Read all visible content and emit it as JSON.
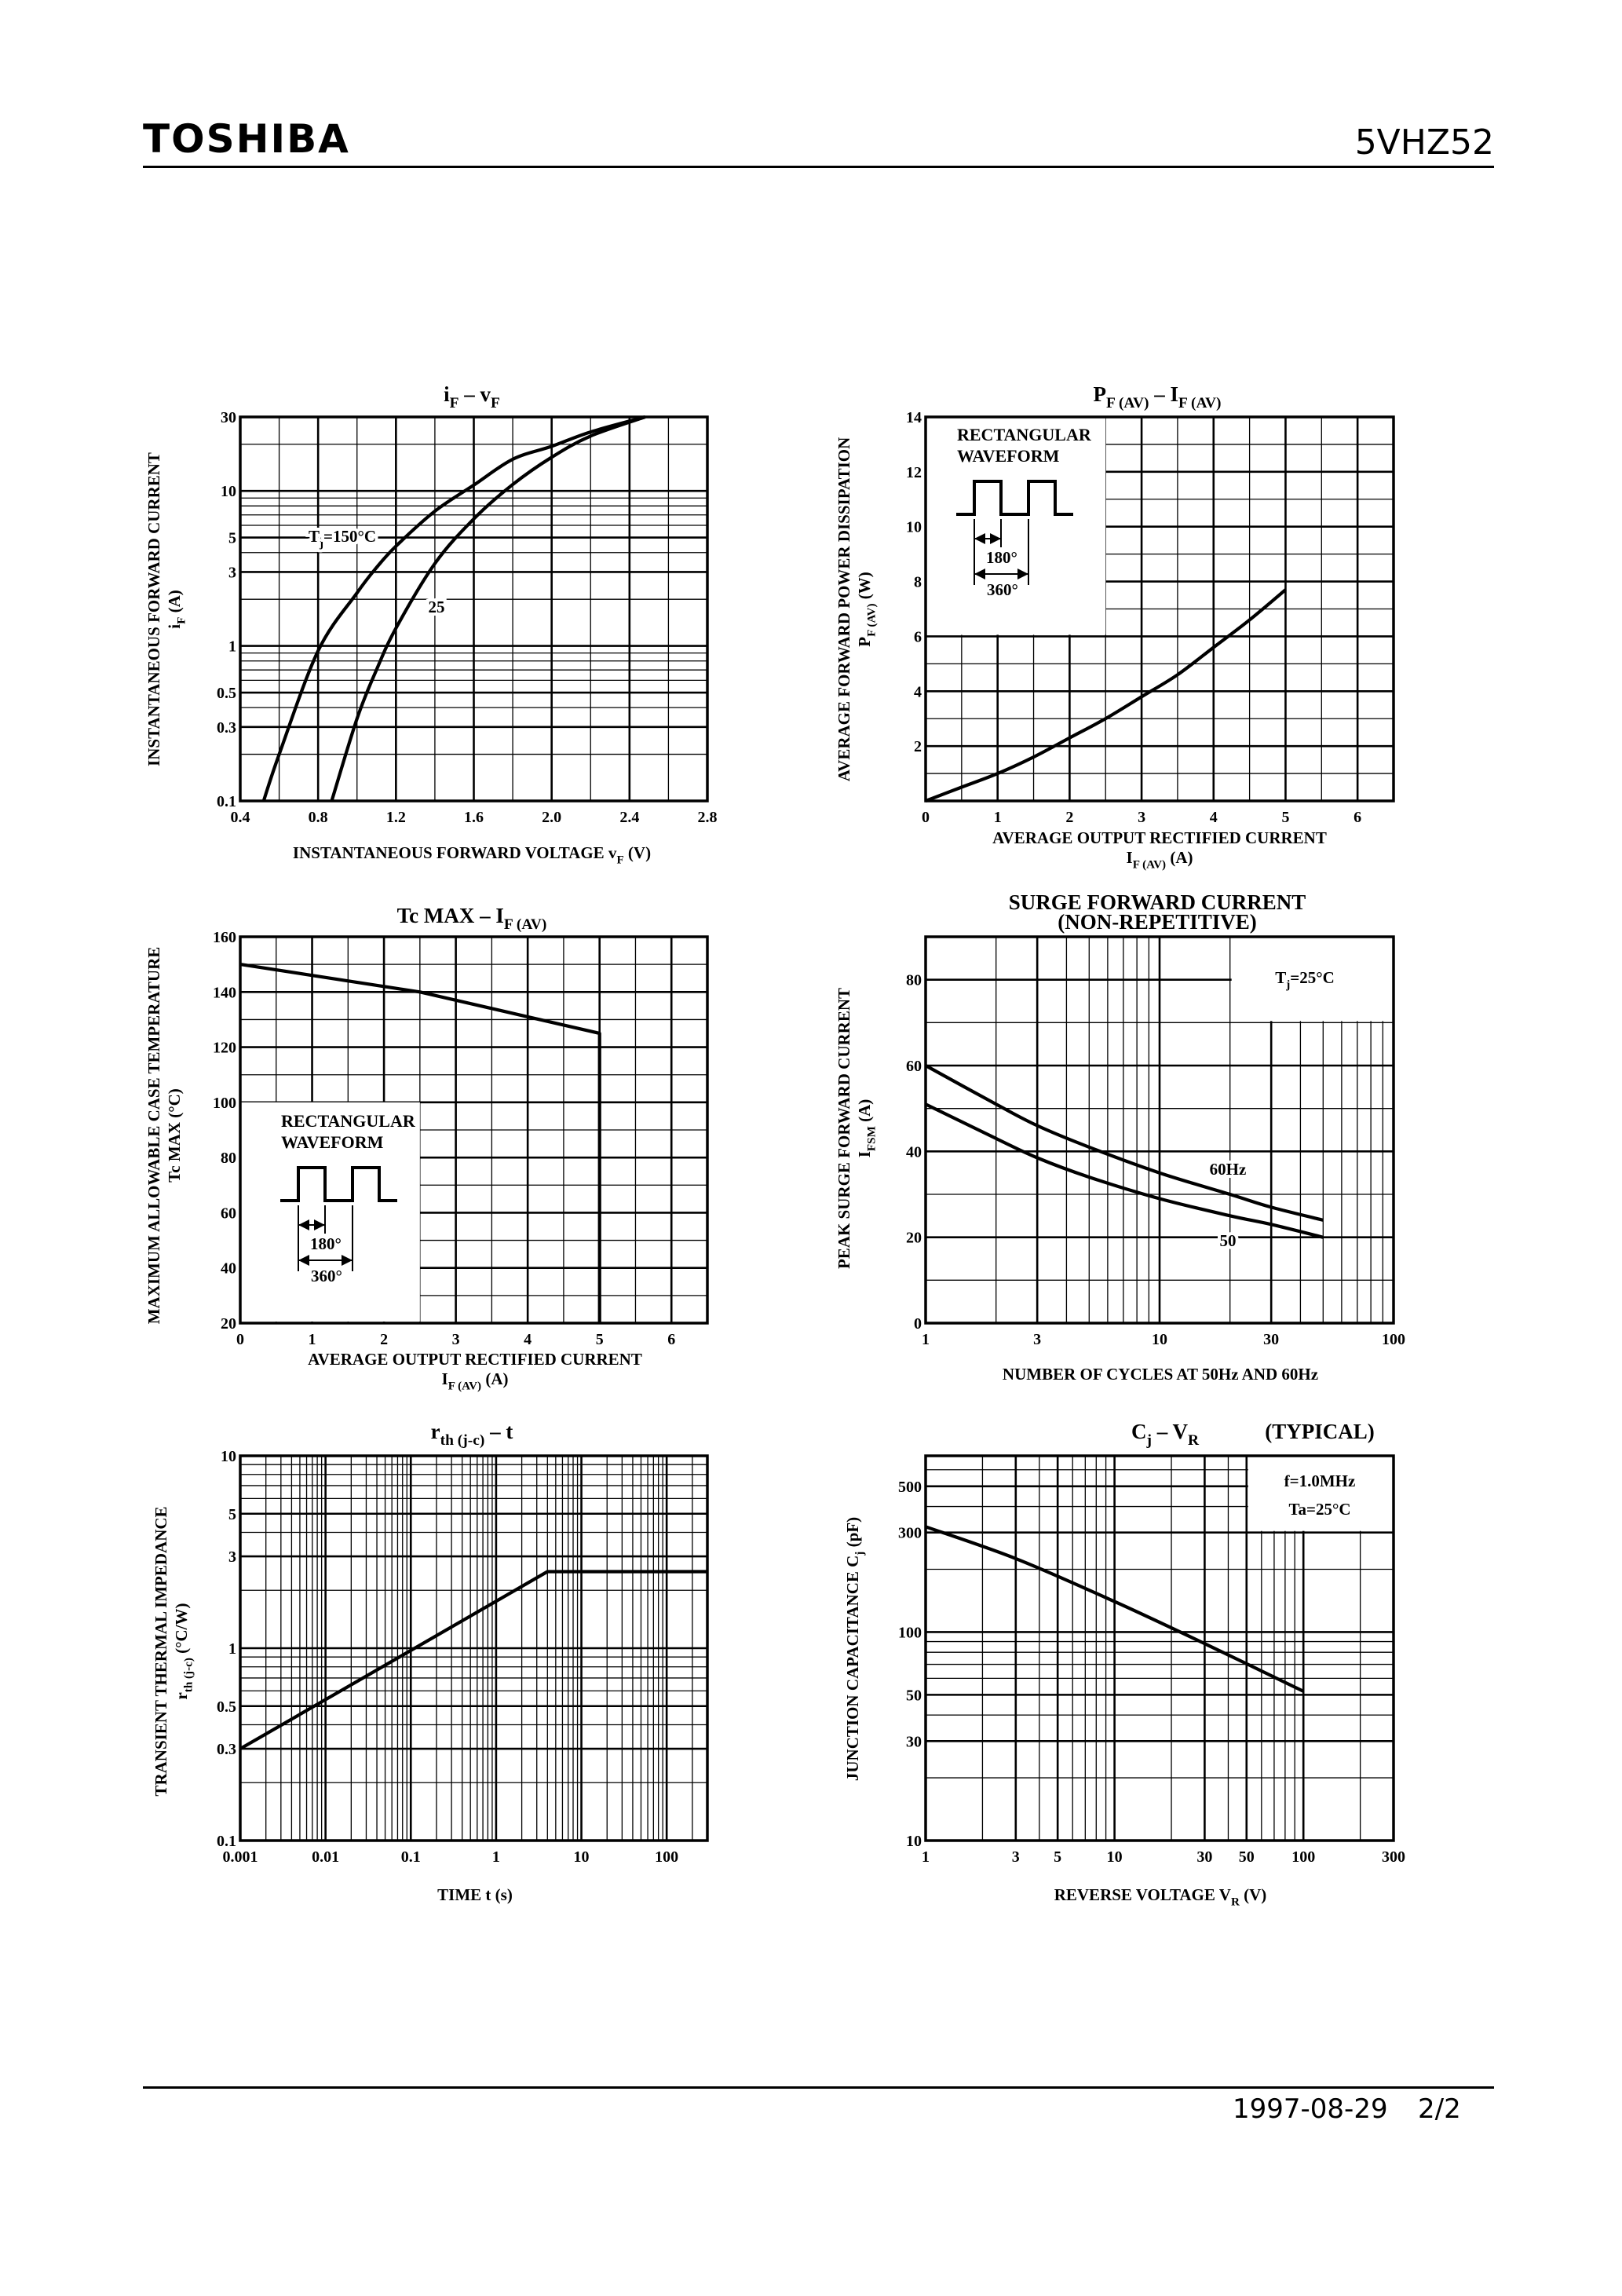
{
  "header": {
    "brand": "TOSHIBA",
    "part_number": "5VHZ52"
  },
  "footer": {
    "date": "1997-08-29",
    "page": "2/2"
  },
  "chart_data": [
    {
      "type": "line",
      "title": [
        [
          [
            "i",
            "F"
          ],
          [
            "  –  v",
            "F"
          ]
        ]
      ],
      "xlabel": [
        [
          [
            "INSTANTANEOUS FORWARD VOLTAGE   v",
            "F"
          ],
          [
            "    (V)",
            ""
          ]
        ]
      ],
      "ylabel": [
        "INSTANTANEOUS FORWARD CURRENT",
        [
          [
            "i",
            "F"
          ],
          [
            "   (A)",
            ""
          ]
        ]
      ],
      "xscale": "linear",
      "yscale": "log",
      "xlim": [
        0.4,
        2.8
      ],
      "ylim": [
        0.1,
        30
      ],
      "xticks": [
        "0.4",
        "0.8",
        "1.2",
        "1.6",
        "2.0",
        "2.4",
        "2.8"
      ],
      "yticks": [
        "0.1",
        "0.3",
        "0.5",
        "1",
        "3",
        "5",
        "10",
        "30"
      ],
      "grid": true,
      "series": [
        {
          "name": [
            [
              [
                "T",
                "j"
              ],
              [
                "=150°C",
                ""
              ]
            ]
          ],
          "x": [
            0.52,
            0.6,
            0.8,
            1.0,
            1.1,
            1.2,
            1.4,
            1.6,
            1.8,
            2.0,
            2.2,
            2.48
          ],
          "y": [
            0.1,
            0.2,
            0.93,
            2.2,
            3.2,
            4.4,
            7.4,
            10.9,
            16,
            19.4,
            24,
            30
          ]
        },
        {
          "name": "25",
          "x": [
            0.87,
            1.0,
            1.1,
            1.2,
            1.4,
            1.6,
            1.8,
            2.0,
            2.2,
            2.48
          ],
          "y": [
            0.1,
            0.34,
            0.7,
            1.3,
            3.4,
            6.6,
            11,
            16.5,
            22.6,
            30
          ]
        }
      ]
    },
    {
      "type": "line",
      "title": [
        [
          [
            "P",
            "F (AV)"
          ],
          [
            "  –  I",
            "F (AV)"
          ]
        ]
      ],
      "xlabel": [
        "AVERAGE OUTPUT RECTIFIED CURRENT",
        [
          [
            "I",
            "F (AV)"
          ],
          [
            "    (A)",
            ""
          ]
        ]
      ],
      "ylabel": [
        "AVERAGE FORWARD POWER DISSIPATION",
        [
          [
            "P",
            "F (AV)"
          ],
          [
            "    (W)",
            ""
          ]
        ]
      ],
      "xscale": "linear",
      "yscale": "linear",
      "xlim": [
        0,
        6.5
      ],
      "ylim": [
        0,
        14
      ],
      "xticks": [
        "0",
        "1",
        "2",
        "3",
        "4",
        "5",
        "6"
      ],
      "yticks": [
        "2",
        "4",
        "6",
        "8",
        "10",
        "12",
        "14"
      ],
      "grid": true,
      "inset": {
        "lines": [
          "RECTANGULAR",
          "WAVEFORM"
        ],
        "conduction_angle": "180°",
        "period": "360°"
      },
      "series": [
        {
          "x": [
            0,
            0.5,
            1,
            1.5,
            2,
            2.5,
            3,
            3.5,
            4,
            4.5,
            5
          ],
          "y": [
            0,
            0.5,
            1.0,
            1.6,
            2.3,
            3.0,
            3.8,
            4.6,
            5.6,
            6.6,
            7.7
          ]
        }
      ]
    },
    {
      "type": "line",
      "title": [
        [
          [
            "Tc MAX  –  I",
            "F (AV)"
          ]
        ]
      ],
      "xlabel": [
        "AVERAGE OUTPUT RECTIFIED CURRENT",
        [
          [
            "I",
            "F (AV)"
          ],
          [
            "    (A)",
            ""
          ]
        ]
      ],
      "ylabel": [
        "MAXIMUM ALLOWABLE CASE TEMPERATURE",
        "Tc  MAX   (°C)"
      ],
      "xscale": "linear",
      "yscale": "linear",
      "xlim": [
        0,
        6.5
      ],
      "ylim": [
        20,
        160
      ],
      "xticks": [
        "0",
        "1",
        "2",
        "3",
        "4",
        "5",
        "6"
      ],
      "yticks": [
        "20",
        "40",
        "60",
        "80",
        "100",
        "120",
        "140",
        "160"
      ],
      "grid": true,
      "inset": {
        "lines": [
          "RECTANGULAR",
          "WAVEFORM"
        ],
        "conduction_angle": "180°",
        "period": "360°"
      },
      "series": [
        {
          "x": [
            0,
            1,
            2,
            2.5,
            3,
            4,
            5,
            5
          ],
          "y": [
            150,
            146,
            142,
            140,
            137,
            131,
            125,
            20
          ]
        }
      ]
    },
    {
      "type": "line",
      "title": [
        "SURGE FORWARD CURRENT",
        "(NON-REPETITIVE)"
      ],
      "xlabel": [
        "NUMBER OF CYCLES AT 50Hz AND 60Hz"
      ],
      "ylabel": [
        "PEAK SURGE FORWARD CURRENT",
        [
          [
            "I",
            "FSM"
          ],
          [
            "    (A)",
            ""
          ]
        ]
      ],
      "xscale": "log",
      "yscale": "linear",
      "xlim": [
        1,
        100
      ],
      "ylim": [
        0,
        90
      ],
      "xticks": [
        "1",
        "3",
        "10",
        "30",
        "100"
      ],
      "yticks": [
        "0",
        "20",
        "40",
        "60",
        "80"
      ],
      "grid": true,
      "condition": [
        [
          [
            "T",
            "j"
          ],
          [
            "=25°C",
            ""
          ]
        ]
      ],
      "series": [
        {
          "name": "60Hz",
          "x": [
            1,
            2,
            3,
            5,
            10,
            20,
            30,
            50
          ],
          "y": [
            60,
            51,
            46,
            41,
            35,
            30,
            27,
            24
          ]
        },
        {
          "name": "50",
          "x": [
            1,
            2,
            3,
            5,
            10,
            20,
            30,
            50
          ],
          "y": [
            51,
            43,
            38.5,
            34,
            29,
            25,
            23,
            20
          ]
        }
      ]
    },
    {
      "type": "line",
      "title": [
        [
          [
            "r",
            "th (j-c)"
          ],
          [
            "  –  t",
            ""
          ]
        ]
      ],
      "xlabel": [
        "TIME    t    (s)"
      ],
      "ylabel": [
        "TRANSIENT THERMAL IMPEDANCE",
        [
          [
            "r",
            "th (j-c)"
          ],
          [
            "    (°C/W)",
            ""
          ]
        ]
      ],
      "xscale": "log",
      "yscale": "log",
      "xlim": [
        0.001,
        300
      ],
      "ylim": [
        0.1,
        10
      ],
      "xticks": [
        "0.001",
        "0.01",
        "0.1",
        "1",
        "10",
        "100"
      ],
      "yticks": [
        "0.1",
        "0.3",
        "0.5",
        "1",
        "3",
        "5",
        "10"
      ],
      "grid": true,
      "series": [
        {
          "x": [
            0.001,
            4,
            300
          ],
          "y": [
            0.3,
            2.5,
            2.5
          ]
        }
      ]
    },
    {
      "type": "line",
      "title": [
        [
          [
            "C",
            "j"
          ],
          [
            "  –  V",
            "R"
          ]
        ]
      ],
      "subtitle": "(TYPICAL)",
      "xlabel": [
        [
          [
            "REVERSE VOLTAGE    V",
            "R"
          ],
          [
            "    (V)",
            ""
          ]
        ]
      ],
      "ylabel": [
        [
          [
            "JUNCTION CAPACITANCE    C",
            "j"
          ],
          [
            "    (pF)",
            ""
          ]
        ]
      ],
      "xscale": "log",
      "yscale": "log",
      "xlim": [
        1,
        300
      ],
      "ylim": [
        10,
        700
      ],
      "xticks": [
        "1",
        "3",
        "5",
        "10",
        "30",
        "50",
        "100",
        "300"
      ],
      "yticks": [
        "10",
        "30",
        "50",
        "100",
        "300",
        "500"
      ],
      "grid": true,
      "condition": [
        "f=1.0MHz",
        "Ta=25°C"
      ],
      "series": [
        {
          "x": [
            1,
            3,
            10,
            30,
            100
          ],
          "y": [
            320,
            225,
            140,
            88,
            52
          ]
        }
      ]
    }
  ]
}
